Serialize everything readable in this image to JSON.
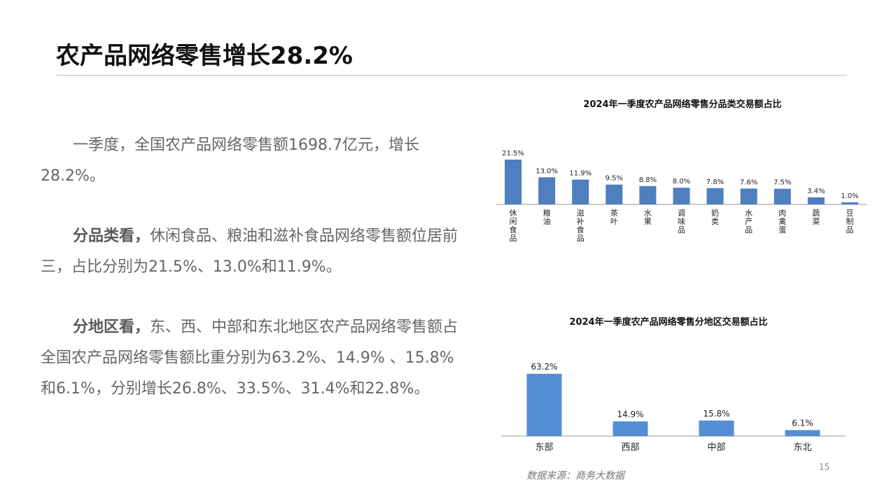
{
  "title": "农产品网络零售增长28.2%",
  "paragraphs": [
    {
      "lead": "",
      "text": "一季度，全国农产品网络零售额1698.7亿元，增长28.2%。"
    },
    {
      "lead": "分品类看，",
      "text": "休闲食品、粮油和滋补食品网络零售额位居前三，占比分别为21.5%、13.0%和11.9%。"
    },
    {
      "lead": "分地区看，",
      "text": "东、西、中部和东北地区农产品网络零售额占全国农产品网络零售额比重分别为63.2%、14.9% 、15.8%和6.1%，分别增长26.8%、33.5%、31.4%和22.8%。"
    }
  ],
  "chart_data": [
    {
      "type": "bar",
      "title": "2024年一季度农产品网络零售分品类交易额占比",
      "categories": [
        "休闲食品",
        "粮油",
        "滋补食品",
        "茶叶",
        "水果",
        "调味品",
        "奶类",
        "水产品",
        "肉禽蛋",
        "蔬菜",
        "豆制品"
      ],
      "values": [
        21.5,
        13.0,
        11.9,
        9.5,
        8.8,
        8.0,
        7.8,
        7.6,
        7.5,
        3.4,
        1.0
      ],
      "value_labels": [
        "21.5%",
        "13.0%",
        "11.9%",
        "9.5%",
        "8.8%",
        "8.0%",
        "7.8%",
        "7.6%",
        "7.5%",
        "3.4%",
        "1.0%"
      ],
      "xlabel": "",
      "ylabel": "",
      "ylim": [
        0,
        21.5
      ],
      "grid": false,
      "bar_color": "#4f7fbf"
    },
    {
      "type": "bar",
      "title": "2024年一季度农产品网络零售分地区交易额占比",
      "categories": [
        "东部",
        "西部",
        "中部",
        "东北"
      ],
      "values": [
        63.2,
        14.9,
        15.8,
        6.1
      ],
      "value_labels": [
        "63.2%",
        "14.9%",
        "15.8%",
        "6.1%"
      ],
      "xlabel": "",
      "ylabel": "",
      "ylim": [
        0,
        63.2
      ],
      "grid": false,
      "bar_color": "#558ed5"
    }
  ],
  "page_number": "15",
  "source": "数据来源：商务大数据"
}
